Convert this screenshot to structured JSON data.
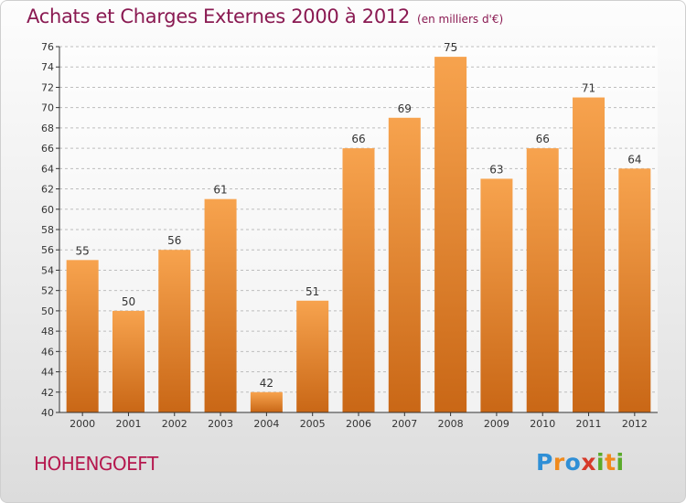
{
  "header": {
    "title": "Achats et Charges Externes 2000 à 2012",
    "subtitle": "(en milliers d'€)"
  },
  "footer": {
    "location": "HOHENGOEFT",
    "brand": "Proxiti",
    "brand_letters": [
      {
        "ch": "P",
        "color": "#2f8fd6"
      },
      {
        "ch": "r",
        "color": "#f08a1c"
      },
      {
        "ch": "o",
        "color": "#2f8fd6"
      },
      {
        "ch": "x",
        "color": "#d63a2a"
      },
      {
        "ch": "i",
        "color": "#5aaa2a"
      },
      {
        "ch": "t",
        "color": "#f08a1c"
      },
      {
        "ch": "i",
        "color": "#5aaa2a"
      }
    ]
  },
  "chart_data": {
    "type": "bar",
    "categories": [
      "2000",
      "2001",
      "2002",
      "2003",
      "2004",
      "2005",
      "2006",
      "2007",
      "2008",
      "2009",
      "2010",
      "2011",
      "2012"
    ],
    "values": [
      55,
      50,
      56,
      61,
      42,
      51,
      66,
      69,
      75,
      63,
      66,
      71,
      64
    ],
    "ylim": [
      40,
      76
    ],
    "yticks": [
      40,
      42,
      44,
      46,
      48,
      50,
      52,
      54,
      56,
      58,
      60,
      62,
      64,
      66,
      68,
      70,
      72,
      74,
      76
    ],
    "grid": true,
    "colors": {
      "bar_light": "#f7a34e",
      "bar_dark": "#c96716",
      "axis": "#333333",
      "grid": "#bdbdbd"
    }
  }
}
